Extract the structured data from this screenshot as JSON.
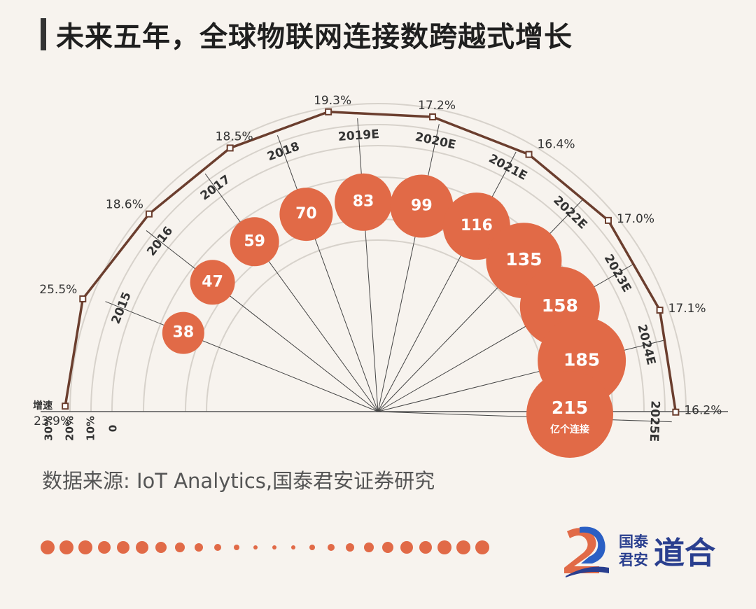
{
  "title": "未来五年，全球物联网连接数跨越式增长",
  "source": "数据来源: IoT Analytics,国泰君安证券研究",
  "logo": {
    "line1": "国泰",
    "line2": "君安",
    "brand": "道合"
  },
  "colors": {
    "bubble": "#e16a47",
    "line": "#6b3e2e",
    "grid": "#d7d2cb",
    "background": "#f7f3ee"
  },
  "chart_data": {
    "type": "bubble-radial",
    "title": "未来五年，全球物联网连接数跨越式增长",
    "categories": [
      "2015",
      "2016",
      "2017",
      "2018",
      "2019E",
      "2020E",
      "2021E",
      "2022E",
      "2023E",
      "2024E",
      "2025E"
    ],
    "series": [
      {
        "name": "亿个连接",
        "values": [
          38,
          47,
          59,
          70,
          83,
          99,
          116,
          135,
          158,
          185,
          215
        ]
      },
      {
        "name": "增速",
        "values": [
          23.9,
          25.5,
          18.6,
          18.5,
          19.3,
          17.2,
          16.4,
          17.0,
          17.1,
          16.2
        ]
      }
    ],
    "value_labels": [
      "38",
      "47",
      "59",
      "70",
      "83",
      "99",
      "116",
      "135",
      "158",
      "185",
      "215"
    ],
    "unit_label": "亿个连接",
    "growth_labels": [
      "23.9%",
      "25.5%",
      "18.6%",
      "18.5%",
      "19.3%",
      "17.2%",
      "16.4%",
      "17.0%",
      "17.1%",
      "16.2%"
    ],
    "growth_series_label": "增速",
    "growth_axis_ticks": [
      "30%",
      "20%",
      "10%",
      "0"
    ]
  }
}
